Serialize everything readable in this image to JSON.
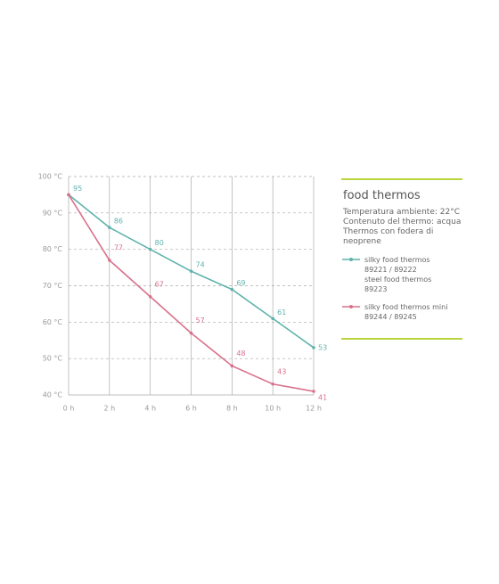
{
  "chart_data": {
    "type": "line",
    "categories": [
      "0 h",
      "2 h",
      "4 h",
      "6 h",
      "8 h",
      "10 h",
      "12 h"
    ],
    "ylim": [
      40,
      100
    ],
    "yticks": [
      {
        "value": 40,
        "label": "40 °C"
      },
      {
        "value": 50,
        "label": "50 °C"
      },
      {
        "value": 60,
        "label": "60 °C"
      },
      {
        "value": 70,
        "label": "70 °C"
      },
      {
        "value": 80,
        "label": "80 °C"
      },
      {
        "value": 90,
        "label": "90 °C"
      },
      {
        "value": 100,
        "label": "100 °C"
      }
    ],
    "grid": true,
    "series": [
      {
        "name": "silky food thermos\n89221 / 89222\nsteel food thermos\n89223",
        "color": "#5fb3ac",
        "values": [
          95,
          86,
          80,
          74,
          69,
          61,
          53
        ]
      },
      {
        "name": "silky food thermos mini\n89244 / 89245",
        "color": "#d9728c",
        "values": [
          95,
          77,
          67,
          57,
          48,
          43,
          41
        ]
      }
    ],
    "legend_title": "food thermos",
    "legend_notes": [
      "Temperatura ambiente: 22°C",
      "Contenuto del thermo: acqua",
      "Thermos con fodera di neoprene"
    ]
  }
}
